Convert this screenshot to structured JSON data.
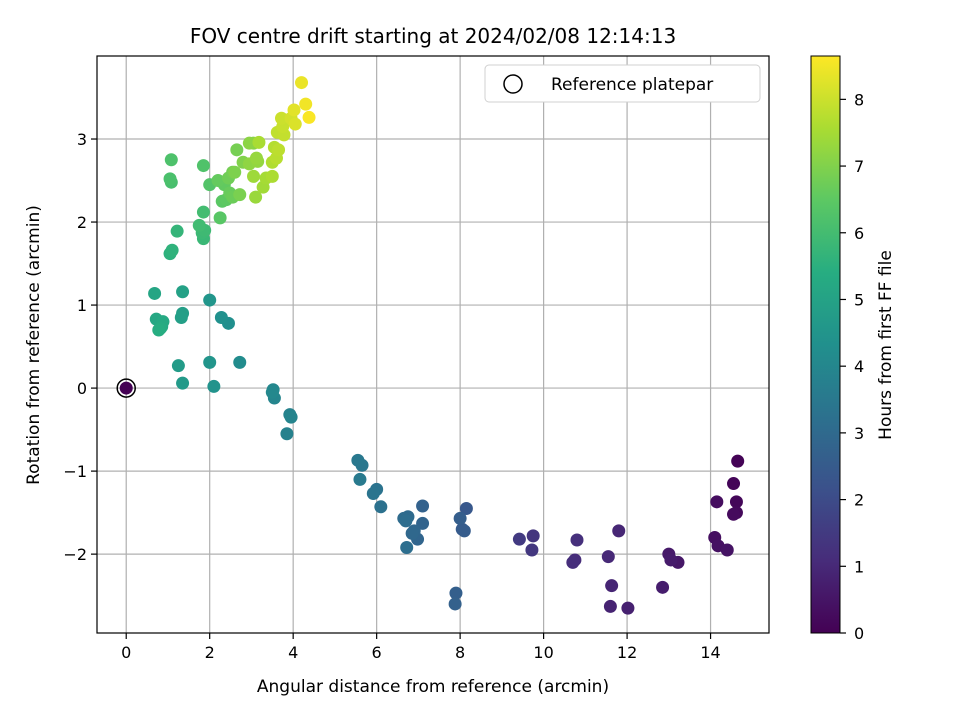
{
  "chart_data": {
    "type": "scatter",
    "title": "FOV centre drift starting at 2024/02/08 12:14:13",
    "xlabel": "Angular distance from reference (arcmin)",
    "ylabel": "Rotation from reference (arcmin)",
    "xlim": [
      -0.7,
      15.4
    ],
    "ylim": [
      -2.95,
      4.0
    ],
    "xticks": [
      "0",
      "2",
      "4",
      "6",
      "8",
      "10",
      "12",
      "14"
    ],
    "yticks": [
      "−2",
      "−1",
      "0",
      "1",
      "2",
      "3"
    ],
    "grid": true,
    "legend": {
      "placement": "top-right",
      "entries": [
        "Reference platepar"
      ]
    },
    "reference_point": [
      0,
      0
    ],
    "colorbar": {
      "label": "Hours from first FF file",
      "colormap": "viridis",
      "range": [
        0,
        8.65
      ],
      "ticks": [
        "0",
        "1",
        "2",
        "3",
        "4",
        "5",
        "6",
        "7",
        "8"
      ]
    },
    "series": [
      {
        "points": [
          [
            14.65,
            -0.88,
            0.05
          ],
          [
            14.55,
            -1.15,
            0.1
          ],
          [
            14.62,
            -1.37,
            0.15
          ],
          [
            14.62,
            -1.5,
            0.2
          ],
          [
            14.55,
            -1.52,
            0.25
          ],
          [
            14.15,
            -1.37,
            0.3
          ],
          [
            14.1,
            -1.8,
            0.35
          ],
          [
            14.18,
            -1.9,
            0.4
          ],
          [
            14.4,
            -1.95,
            0.45
          ],
          [
            13.22,
            -2.1,
            0.55
          ],
          [
            13.0,
            -2.0,
            0.6
          ],
          [
            13.05,
            -2.07,
            0.65
          ],
          [
            12.85,
            -2.4,
            0.7
          ],
          [
            12.02,
            -2.65,
            0.8
          ],
          [
            11.6,
            -2.63,
            0.85
          ],
          [
            11.63,
            -2.38,
            0.9
          ],
          [
            11.8,
            -1.72,
            0.95
          ],
          [
            11.55,
            -2.03,
            1.0
          ],
          [
            10.75,
            -2.07,
            1.1
          ],
          [
            10.7,
            -2.1,
            1.15
          ],
          [
            10.8,
            -1.83,
            1.2
          ],
          [
            9.75,
            -1.78,
            1.35
          ],
          [
            9.72,
            -1.95,
            1.4
          ],
          [
            9.42,
            -1.82,
            1.5
          ],
          [
            8.15,
            -1.45,
            2.4
          ],
          [
            8.05,
            -1.7,
            2.5
          ],
          [
            8.1,
            -1.72,
            2.55
          ],
          [
            8.0,
            -1.57,
            2.6
          ],
          [
            7.9,
            -2.47,
            2.65
          ],
          [
            7.88,
            -2.6,
            2.7
          ],
          [
            7.1,
            -1.42,
            2.75
          ],
          [
            7.1,
            -1.63,
            2.8
          ],
          [
            6.98,
            -1.82,
            2.85
          ],
          [
            6.9,
            -1.72,
            2.9
          ],
          [
            6.85,
            -1.75,
            2.95
          ],
          [
            6.75,
            -1.55,
            3.0
          ],
          [
            6.65,
            -1.57,
            3.05
          ],
          [
            6.7,
            -1.6,
            3.1
          ],
          [
            6.72,
            -1.92,
            3.15
          ],
          [
            6.1,
            -1.43,
            3.25
          ],
          [
            6.0,
            -1.22,
            3.3
          ],
          [
            5.92,
            -1.27,
            3.35
          ],
          [
            5.65,
            -0.93,
            3.45
          ],
          [
            5.55,
            -0.87,
            3.5
          ],
          [
            5.6,
            -1.1,
            3.55
          ],
          [
            3.85,
            -0.55,
            3.8
          ],
          [
            3.92,
            -0.32,
            3.85
          ],
          [
            3.95,
            -0.35,
            3.9
          ],
          [
            3.55,
            -0.12,
            3.95
          ],
          [
            3.52,
            -0.02,
            4.0
          ],
          [
            3.5,
            -0.05,
            4.05
          ],
          [
            2.72,
            0.31,
            4.2
          ],
          [
            2.45,
            0.78,
            4.3
          ],
          [
            2.28,
            0.85,
            4.35
          ],
          [
            2.1,
            0.02,
            4.45
          ],
          [
            2.0,
            0.31,
            4.5
          ],
          [
            2.0,
            1.06,
            4.55
          ],
          [
            1.35,
            0.06,
            4.7
          ],
          [
            1.25,
            0.27,
            4.75
          ],
          [
            1.35,
            0.9,
            4.85
          ],
          [
            1.32,
            0.85,
            4.9
          ],
          [
            1.35,
            1.16,
            4.95
          ],
          [
            0.68,
            1.14,
            5.1
          ],
          [
            0.72,
            0.83,
            5.2
          ],
          [
            0.88,
            0.8,
            5.25
          ],
          [
            0.85,
            0.74,
            5.3
          ],
          [
            0.82,
            0.72,
            5.35
          ],
          [
            0.78,
            0.7,
            5.4
          ],
          [
            1.05,
            1.62,
            5.55
          ],
          [
            1.1,
            1.66,
            5.6
          ],
          [
            1.22,
            1.89,
            5.7
          ],
          [
            1.85,
            1.8,
            5.8
          ],
          [
            1.82,
            1.87,
            5.85
          ],
          [
            1.88,
            1.9,
            5.9
          ],
          [
            1.75,
            1.96,
            5.95
          ],
          [
            1.85,
            2.12,
            6.0
          ],
          [
            1.08,
            2.48,
            6.1
          ],
          [
            1.05,
            2.52,
            6.15
          ],
          [
            1.08,
            2.75,
            6.2
          ],
          [
            1.85,
            2.68,
            6.25
          ],
          [
            2.0,
            2.45,
            6.3
          ],
          [
            2.25,
            2.05,
            6.4
          ],
          [
            2.3,
            2.25,
            6.45
          ],
          [
            2.4,
            2.27,
            6.5
          ],
          [
            2.35,
            2.45,
            6.55
          ],
          [
            2.2,
            2.5,
            6.6
          ],
          [
            2.48,
            2.35,
            6.65
          ],
          [
            2.55,
            2.3,
            6.7
          ],
          [
            2.45,
            2.53,
            6.75
          ],
          [
            2.55,
            2.6,
            6.8
          ],
          [
            2.65,
            2.87,
            6.85
          ],
          [
            2.72,
            2.33,
            6.9
          ],
          [
            2.6,
            2.6,
            6.95
          ],
          [
            2.8,
            2.72,
            7.0
          ],
          [
            3.05,
            2.95,
            7.1
          ],
          [
            2.95,
            2.95,
            7.15
          ],
          [
            2.95,
            2.7,
            7.2
          ],
          [
            3.15,
            2.73,
            7.25
          ],
          [
            3.12,
            2.77,
            7.3
          ],
          [
            3.1,
            2.3,
            7.35
          ],
          [
            3.05,
            2.55,
            7.4
          ],
          [
            3.28,
            2.42,
            7.45
          ],
          [
            3.35,
            2.53,
            7.5
          ],
          [
            3.18,
            2.96,
            7.55
          ],
          [
            3.5,
            2.55,
            7.6
          ],
          [
            3.5,
            2.72,
            7.65
          ],
          [
            3.55,
            2.9,
            7.7
          ],
          [
            3.6,
            2.77,
            7.75
          ],
          [
            3.65,
            2.87,
            7.8
          ],
          [
            3.62,
            3.08,
            7.85
          ],
          [
            3.78,
            3.05,
            7.9
          ],
          [
            3.75,
            3.15,
            7.95
          ],
          [
            3.72,
            3.25,
            8.0
          ],
          [
            3.95,
            3.25,
            8.1
          ],
          [
            4.05,
            3.18,
            8.2
          ],
          [
            4.02,
            3.35,
            8.3
          ],
          [
            4.2,
            3.68,
            8.4
          ],
          [
            4.3,
            3.42,
            8.5
          ],
          [
            4.38,
            3.26,
            8.6
          ]
        ]
      }
    ]
  }
}
